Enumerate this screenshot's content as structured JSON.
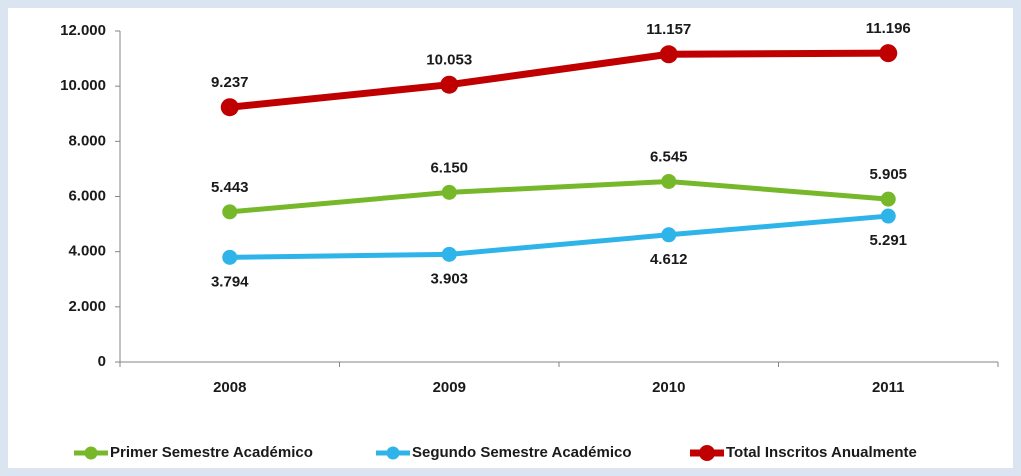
{
  "chart_data": {
    "type": "line",
    "categories": [
      "2008",
      "2009",
      "2010",
      "2011"
    ],
    "series": [
      {
        "name": "Primer Semestre Académico",
        "color": "#76b82a",
        "values": [
          5443,
          6150,
          6545,
          5905
        ],
        "value_labels": [
          "5.443",
          "6.150",
          "6.545",
          "5.905"
        ]
      },
      {
        "name": "Segundo Semestre Académico",
        "color": "#2fb4e9",
        "values": [
          3794,
          3903,
          4612,
          5291
        ],
        "value_labels": [
          "3.794",
          "3.903",
          "4.612",
          "5.291"
        ]
      },
      {
        "name": "Total Inscritos Anualmente",
        "color": "#c00000",
        "values": [
          9237,
          10053,
          11157,
          11196
        ],
        "value_labels": [
          "9.237",
          "10.053",
          "11.157",
          "11.196"
        ]
      }
    ],
    "ylim": [
      0,
      12000
    ],
    "yticks": [
      0,
      {
        "value": 2000,
        "label": "2.000"
      },
      {
        "value": 4000,
        "label": "4.000"
      },
      {
        "value": 6000,
        "label": "6.000"
      },
      {
        "value": 8000,
        "label": "8.000"
      },
      {
        "value": 10000,
        "label": "10.000"
      },
      {
        "value": 12000,
        "label": "12.000"
      }
    ],
    "legend": "bottom"
  }
}
